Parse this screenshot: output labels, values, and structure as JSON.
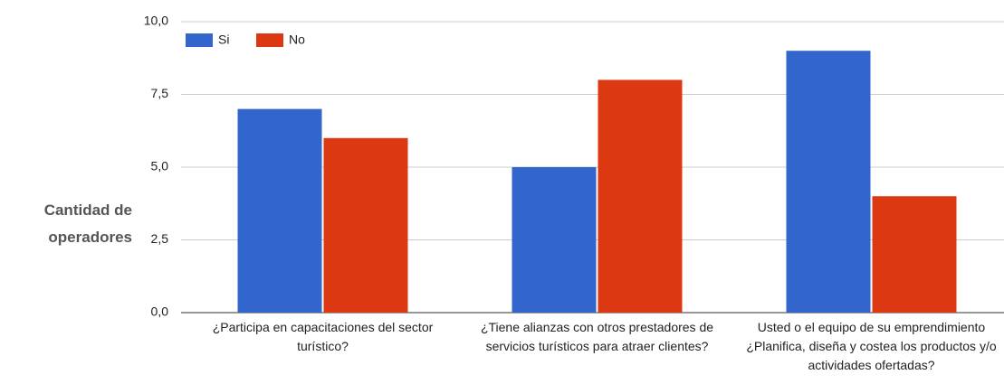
{
  "chart_data": {
    "type": "bar",
    "y_label": "Cantidad de operadores",
    "categories": [
      "¿Participa en capacitaciones del sector turístico?",
      "¿Tiene alianzas con otros prestadores de servicios turísticos para atraer clientes?",
      "Usted o el equipo de su emprendimiento ¿Planifica, diseña y costea los productos y/o actividades ofertadas?"
    ],
    "series": [
      {
        "name": "Si",
        "color": "#3366cc",
        "values": [
          7,
          5,
          9
        ]
      },
      {
        "name": "No",
        "color": "#dc3912",
        "values": [
          6,
          8,
          4
        ]
      }
    ],
    "ylim": [
      0,
      10
    ],
    "yticks": [
      {
        "value": 0,
        "label": "0,0"
      },
      {
        "value": 2.5,
        "label": "2,5"
      },
      {
        "value": 5,
        "label": "5,0"
      },
      {
        "value": 7.5,
        "label": "7,5"
      },
      {
        "value": 10,
        "label": "10,0"
      }
    ],
    "grid": true,
    "legend": "top-left"
  }
}
